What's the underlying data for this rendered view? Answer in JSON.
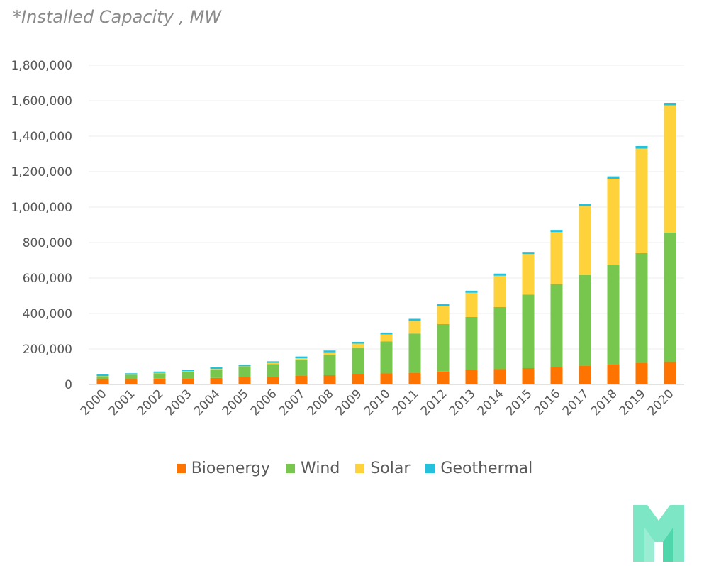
{
  "chart_data": {
    "type": "bar",
    "stacked": true,
    "subtitle": "*Installed Capacity , MW",
    "categories": [
      "2000",
      "2001",
      "2002",
      "2003",
      "2004",
      "2005",
      "2006",
      "2007",
      "2008",
      "2009",
      "2010",
      "2011",
      "2012",
      "2013",
      "2014",
      "2015",
      "2016",
      "2017",
      "2018",
      "2019",
      "2020"
    ],
    "series": [
      {
        "name": "Bioenergy",
        "color": "#FF7400",
        "values": [
          30000,
          31000,
          33000,
          35000,
          37000,
          40000,
          43000,
          48000,
          52000,
          57000,
          62000,
          67000,
          73000,
          80000,
          86000,
          92000,
          100000,
          107000,
          115000,
          120000,
          126000
        ]
      },
      {
        "name": "Wind",
        "color": "#77C74F",
        "values": [
          17000,
          23000,
          30000,
          38000,
          47000,
          58000,
          72000,
          91000,
          114000,
          150000,
          180000,
          220000,
          267000,
          300000,
          350000,
          415000,
          465000,
          510000,
          560000,
          620000,
          730000
        ]
      },
      {
        "name": "Solar",
        "color": "#FDD23A",
        "values": [
          1000,
          1000,
          2000,
          2000,
          3000,
          4000,
          6000,
          9000,
          15000,
          23000,
          40000,
          72000,
          102000,
          137000,
          177000,
          228000,
          294000,
          390000,
          485000,
          590000,
          718000
        ]
      },
      {
        "name": "Geothermal",
        "color": "#25C1DC",
        "values": [
          8000,
          8000,
          8000,
          8500,
          9000,
          9000,
          9500,
          9500,
          10000,
          10000,
          10500,
          11000,
          11000,
          11500,
          12000,
          12500,
          12500,
          13000,
          13500,
          14000,
          14000
        ]
      }
    ],
    "ylim": [
      0,
      1800000
    ],
    "yticks": [
      0,
      200000,
      400000,
      600000,
      800000,
      1000000,
      1200000,
      1400000,
      1600000,
      1800000
    ],
    "ytick_labels": [
      "0",
      "200,000",
      "400,000",
      "600,000",
      "800,000",
      "1,000,000",
      "1,200,000",
      "1,400,000",
      "1,600,000",
      "1,800,000"
    ],
    "grid": true,
    "legend_position": "bottom"
  },
  "logo": {
    "name": "m-logo-icon",
    "color": "#6FE3BE"
  }
}
